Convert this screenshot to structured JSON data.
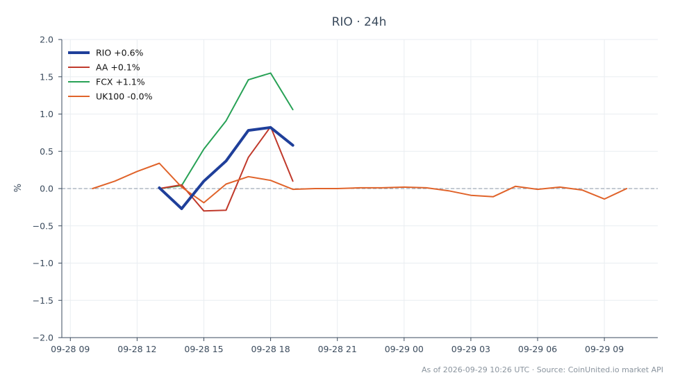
{
  "chart_data": {
    "type": "line",
    "title": "RIO · 24h",
    "ylabel": "%",
    "xlabel": "",
    "ylim": [
      -2.0,
      2.0
    ],
    "xlim": [
      "2026-09-28 08:37",
      "2026-09-29 11:24"
    ],
    "yticks": [
      2.0,
      1.5,
      1.0,
      0.5,
      0.0,
      -0.5,
      -1.0,
      -1.5,
      -2.0
    ],
    "ytick_labels": [
      "2.0",
      "1.5",
      "1.0",
      "0.5",
      "0.0",
      "−0.5",
      "−1.0",
      "−1.5",
      "−2.0"
    ],
    "xticks": [
      "2026-09-28 09:00",
      "2026-09-28 12:00",
      "2026-09-28 15:00",
      "2026-09-28 18:00",
      "2026-09-28 21:00",
      "2026-09-29 00:00",
      "2026-09-29 03:00",
      "2026-09-29 06:00",
      "2026-09-29 09:00"
    ],
    "xtick_labels": [
      "09-28 09",
      "09-28 12",
      "09-28 15",
      "09-28 18",
      "09-28 21",
      "09-29 00",
      "09-29 03",
      "09-29 06",
      "09-29 09"
    ],
    "grid": true,
    "zero_line": true,
    "legend_position": "top-left",
    "series": [
      {
        "name": "RIO +0.6%",
        "color": "#1f3f9a",
        "width": "thick",
        "x": [
          "2026-09-28 13:00",
          "2026-09-28 14:00",
          "2026-09-28 15:00",
          "2026-09-28 16:00",
          "2026-09-28 17:00",
          "2026-09-28 18:00",
          "2026-09-28 19:00"
        ],
        "values": [
          0.01,
          -0.27,
          0.1,
          0.37,
          0.78,
          0.82,
          0.58
        ]
      },
      {
        "name": "AA +0.1%",
        "color": "#c0392b",
        "width": "normal",
        "x": [
          "2026-09-28 13:00",
          "2026-09-28 14:00",
          "2026-09-28 15:00",
          "2026-09-28 16:00",
          "2026-09-28 17:00",
          "2026-09-28 18:00",
          "2026-09-28 19:00"
        ],
        "values": [
          0.0,
          0.05,
          -0.3,
          -0.29,
          0.42,
          0.83,
          0.1
        ]
      },
      {
        "name": "FCX +1.1%",
        "color": "#27a155",
        "width": "normal",
        "x": [
          "2026-09-28 13:00",
          "2026-09-28 14:00",
          "2026-09-28 15:00",
          "2026-09-28 16:00",
          "2026-09-28 17:00",
          "2026-09-28 18:00",
          "2026-09-28 19:00"
        ],
        "values": [
          0.0,
          0.04,
          0.53,
          0.91,
          1.46,
          1.55,
          1.06
        ]
      },
      {
        "name": "UK100 -0.0%",
        "color": "#e0632a",
        "width": "normal",
        "x": [
          "2026-09-28 10:00",
          "2026-09-28 11:00",
          "2026-09-28 12:00",
          "2026-09-28 13:00",
          "2026-09-28 14:00",
          "2026-09-28 15:00",
          "2026-09-28 16:00",
          "2026-09-28 17:00",
          "2026-09-28 18:00",
          "2026-09-28 19:00",
          "2026-09-28 20:00",
          "2026-09-28 21:00",
          "2026-09-28 22:00",
          "2026-09-28 23:00",
          "2026-09-29 00:00",
          "2026-09-29 01:00",
          "2026-09-29 02:00",
          "2026-09-29 03:00",
          "2026-09-29 04:00",
          "2026-09-29 05:00",
          "2026-09-29 06:00",
          "2026-09-29 07:00",
          "2026-09-29 08:00",
          "2026-09-29 09:00",
          "2026-09-29 10:00"
        ],
        "values": [
          0.0,
          0.1,
          0.23,
          0.34,
          0.02,
          -0.19,
          0.06,
          0.16,
          0.11,
          -0.01,
          0.0,
          0.0,
          0.01,
          0.01,
          0.02,
          0.01,
          -0.03,
          -0.09,
          -0.11,
          0.03,
          -0.01,
          0.02,
          -0.02,
          -0.14,
          0.0
        ]
      }
    ],
    "footer": "As of 2026-09-29 10:26 UTC · Source: CoinUnited.io market API"
  }
}
